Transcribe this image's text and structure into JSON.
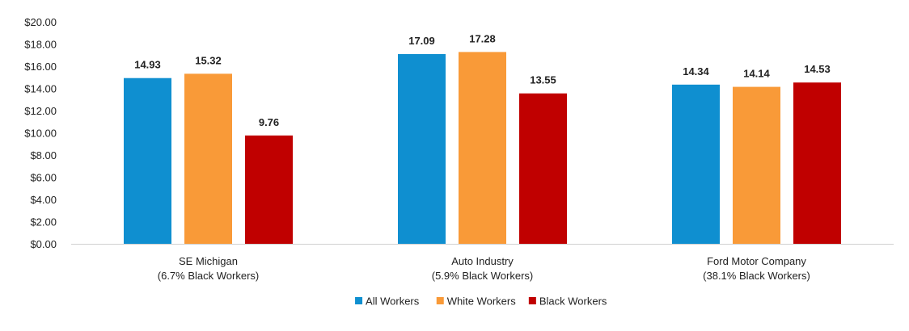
{
  "chart_data": {
    "type": "bar",
    "categories": [
      [
        "SE Michigan",
        "(6.7% Black Workers)"
      ],
      [
        "Auto Industry",
        "(5.9% Black Workers)"
      ],
      [
        "Ford Motor Company",
        "(38.1% Black Workers)"
      ]
    ],
    "series": [
      {
        "name": "All Workers",
        "color": "#0f8fd0",
        "values": [
          14.93,
          17.09,
          14.34
        ],
        "labels": [
          "14.93",
          "17.09",
          "14.34"
        ]
      },
      {
        "name": "White Workers",
        "color": "#f99a38",
        "values": [
          15.32,
          17.28,
          14.14
        ],
        "labels": [
          "15.32",
          "17.28",
          "14.14"
        ]
      },
      {
        "name": "Black Workers",
        "color": "#c00000",
        "values": [
          9.76,
          13.55,
          14.53
        ],
        "labels": [
          "9.76",
          "13.55",
          "14.53"
        ]
      }
    ],
    "y_ticks": [
      "$0.00",
      "$2.00",
      "$4.00",
      "$6.00",
      "$8.00",
      "$10.00",
      "$12.00",
      "$14.00",
      "$16.00",
      "$18.00",
      "$20.00"
    ],
    "ylim": [
      0,
      20
    ],
    "grid": false,
    "legend_position": "bottom",
    "title": "",
    "xlabel": "",
    "ylabel": ""
  }
}
